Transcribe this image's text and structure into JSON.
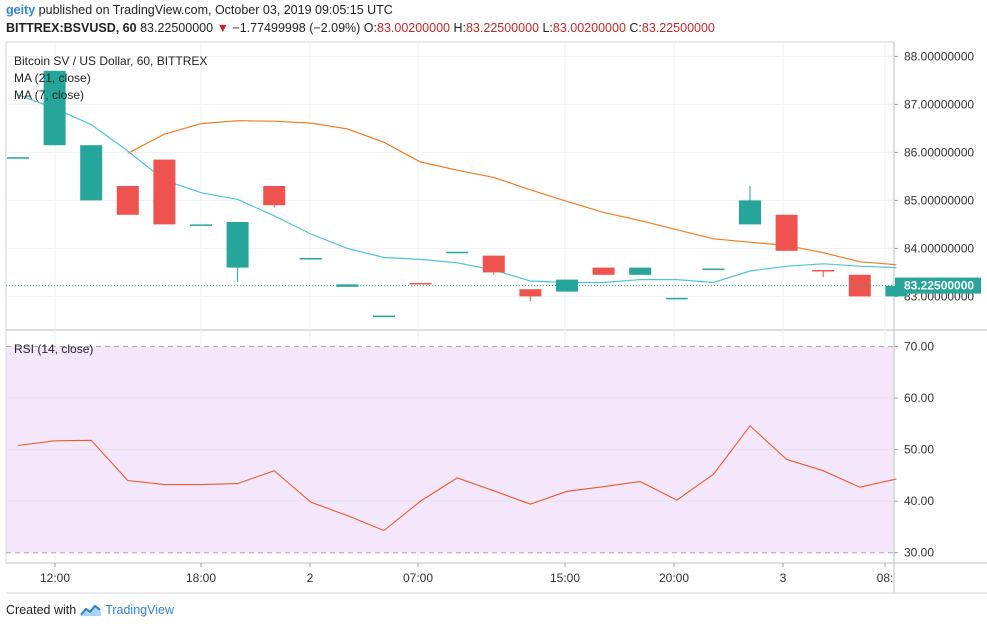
{
  "header": {
    "user": "geity",
    "published_text": "published on TradingView.com, October 03, 2019 09:05:15 UTC",
    "symbol": "BITTREX:BSVUSD, 60",
    "last": "83.22500000",
    "change": "−1.77499998 (−2.09%)",
    "o_label": "O:",
    "o": "83.00200000",
    "h_label": "H:",
    "h": "83.22500000",
    "l_label": "L:",
    "l": "83.00200000",
    "c_label": "C:",
    "c": "83.22500000"
  },
  "footer": {
    "created_with": "Created with",
    "brand": "TradingView"
  },
  "colors": {
    "up": "#26a69a",
    "down": "#ef5350",
    "ma21": "#f57c20",
    "ma7": "#4fc3d9",
    "rsi": "#f05a28",
    "rsi_band": "#f4e6fb"
  },
  "chart_data": [
    {
      "type": "candlestick",
      "title": "Bitcoin SV / US Dollar, 60, BITTREX",
      "legend": [
        "MA (21, close)",
        "MA (7, close)"
      ],
      "last_price_label": "83.22500000",
      "ylim": [
        82.3,
        88.3
      ],
      "y_ticks": [
        83,
        84,
        85,
        86,
        87,
        88
      ],
      "y_tick_labels": [
        "83.00000000",
        "84.00000000",
        "85.00000000",
        "86.00000000",
        "87.00000000",
        "88.00000000"
      ],
      "x_tick_labels": [
        "12:00",
        "18:00",
        "2",
        "07:00",
        "15:00",
        "20:00",
        "3",
        "08:"
      ],
      "candles": [
        {
          "o": 85.9,
          "h": 85.9,
          "l": 85.9,
          "c": 85.9
        },
        {
          "o": 86.15,
          "h": 87.7,
          "l": 86.15,
          "c": 87.7
        },
        {
          "o": 85.0,
          "h": 86.15,
          "l": 85.0,
          "c": 86.15
        },
        {
          "o": 85.3,
          "h": 85.3,
          "l": 84.7,
          "c": 84.7
        },
        {
          "o": 85.85,
          "h": 85.85,
          "l": 84.5,
          "c": 84.5
        },
        {
          "o": 84.5,
          "h": 84.5,
          "l": 84.5,
          "c": 84.5
        },
        {
          "o": 83.6,
          "h": 84.55,
          "l": 83.3,
          "c": 84.55
        },
        {
          "o": 85.3,
          "h": 85.3,
          "l": 84.85,
          "c": 84.9
        },
        {
          "o": 83.8,
          "h": 83.8,
          "l": 83.8,
          "c": 83.8
        },
        {
          "o": 83.2,
          "h": 83.25,
          "l": 83.2,
          "c": 83.25
        },
        {
          "o": 82.6,
          "h": 82.6,
          "l": 82.6,
          "c": 82.6
        },
        {
          "o": 83.28,
          "h": 83.28,
          "l": 83.25,
          "c": 83.25
        },
        {
          "o": 83.93,
          "h": 83.93,
          "l": 83.93,
          "c": 83.93
        },
        {
          "o": 83.85,
          "h": 83.85,
          "l": 83.45,
          "c": 83.5
        },
        {
          "o": 83.15,
          "h": 83.15,
          "l": 82.9,
          "c": 83.0
        },
        {
          "o": 83.1,
          "h": 83.35,
          "l": 83.1,
          "c": 83.35
        },
        {
          "o": 83.6,
          "h": 83.6,
          "l": 83.45,
          "c": 83.45
        },
        {
          "o": 83.45,
          "h": 83.6,
          "l": 83.45,
          "c": 83.6
        },
        {
          "o": 82.97,
          "h": 82.97,
          "l": 82.97,
          "c": 82.97
        },
        {
          "o": 83.58,
          "h": 83.58,
          "l": 83.58,
          "c": 83.58
        },
        {
          "o": 84.5,
          "h": 85.3,
          "l": 84.5,
          "c": 85.0
        },
        {
          "o": 84.7,
          "h": 84.7,
          "l": 83.95,
          "c": 83.95
        },
        {
          "o": 83.55,
          "h": 83.55,
          "l": 83.4,
          "c": 83.52
        },
        {
          "o": 83.45,
          "h": 83.45,
          "l": 83.0,
          "c": 83.0
        },
        {
          "o": 83.0,
          "h": 83.22,
          "l": 83.0,
          "c": 83.22
        }
      ],
      "ma21": [
        85.98,
        86.38,
        86.6,
        86.66,
        86.65,
        86.61,
        86.49,
        86.21,
        85.8,
        85.63,
        85.48,
        85.22,
        84.98,
        84.75,
        84.58,
        84.39,
        84.2,
        84.13,
        84.06,
        83.91,
        83.72,
        83.66
      ],
      "ma7": [
        87.2,
        86.92,
        86.58,
        86.03,
        85.42,
        85.16,
        85.02,
        84.68,
        84.3,
        84.0,
        83.81,
        83.77,
        83.7,
        83.55,
        83.32,
        83.29,
        83.29,
        83.35,
        83.35,
        83.29,
        83.53,
        83.63,
        83.68,
        83.63,
        83.6
      ]
    },
    {
      "type": "line",
      "title": "RSI (14, close)",
      "ylim": [
        28,
        73
      ],
      "y_ticks": [
        30,
        40,
        50,
        60,
        70
      ],
      "y_tick_labels": [
        "30.00",
        "40.00",
        "50.00",
        "60.00",
        "70.00"
      ],
      "band": [
        30,
        70
      ],
      "values": [
        50.8,
        51.7,
        51.8,
        44.0,
        43.2,
        43.2,
        43.4,
        45.9,
        39.8,
        37.2,
        34.3,
        40.0,
        44.5,
        42.0,
        39.4,
        41.9,
        42.8,
        43.8,
        40.2,
        45.2,
        54.6,
        48.1,
        45.9,
        42.7,
        44.3
      ]
    }
  ]
}
